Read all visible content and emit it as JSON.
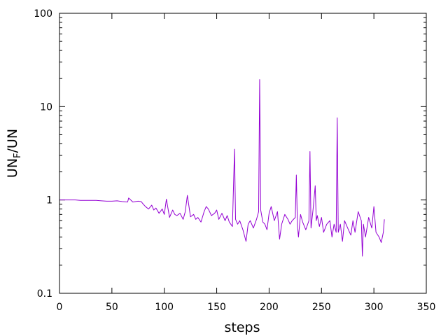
{
  "chart_data": {
    "type": "line",
    "title": "",
    "xlabel": "steps",
    "ylabel": "UN",
    "ylabel_sub": "F",
    "ylabel_suffix": "/UN",
    "xlim": [
      0,
      350
    ],
    "ylim": [
      0.1,
      100
    ],
    "yscale": "log",
    "grid": false,
    "legend": "none",
    "x_ticks": [
      0,
      50,
      100,
      150,
      200,
      250,
      300,
      350
    ],
    "x_tick_labels": [
      "0",
      "50",
      "100",
      "150",
      "200",
      "250",
      "300",
      "350"
    ],
    "y_ticks": [
      0.1,
      1,
      10,
      100
    ],
    "y_tick_labels": [
      "0.1",
      "1",
      "10",
      "100"
    ],
    "series": [
      {
        "color": "#9400d3",
        "x": [
          0,
          5,
          10,
          15,
          20,
          25,
          30,
          35,
          40,
          45,
          50,
          55,
          60,
          65,
          66,
          70,
          75,
          78,
          80,
          82,
          85,
          88,
          90,
          92,
          95,
          98,
          100,
          102,
          105,
          108,
          110,
          112,
          115,
          118,
          120,
          122,
          125,
          128,
          130,
          132,
          135,
          138,
          140,
          142,
          145,
          148,
          150,
          152,
          155,
          158,
          160,
          162,
          165,
          167,
          168,
          170,
          172,
          175,
          178,
          180,
          182,
          185,
          188,
          190,
          191,
          192,
          194,
          196,
          198,
          200,
          202,
          205,
          208,
          210,
          212,
          215,
          218,
          220,
          222,
          225,
          226,
          227,
          228,
          230,
          232,
          235,
          238,
          239,
          240,
          242,
          244,
          245,
          246,
          248,
          250,
          252,
          255,
          258,
          260,
          262,
          264,
          265,
          266,
          268,
          270,
          272,
          275,
          278,
          280,
          282,
          285,
          288,
          289,
          290,
          292,
          295,
          298,
          300,
          302,
          305,
          307,
          309,
          310
        ],
        "y": [
          1.0,
          1.0,
          1.0,
          1.0,
          0.99,
          0.99,
          0.99,
          0.99,
          0.98,
          0.97,
          0.97,
          0.98,
          0.96,
          0.95,
          1.05,
          0.95,
          0.97,
          0.96,
          0.9,
          0.85,
          0.8,
          0.88,
          0.78,
          0.82,
          0.72,
          0.8,
          0.7,
          1.02,
          0.65,
          0.78,
          0.7,
          0.68,
          0.72,
          0.62,
          0.75,
          1.12,
          0.66,
          0.7,
          0.62,
          0.65,
          0.58,
          0.75,
          0.85,
          0.8,
          0.68,
          0.72,
          0.78,
          0.62,
          0.72,
          0.6,
          0.68,
          0.58,
          0.52,
          3.5,
          0.62,
          0.55,
          0.6,
          0.48,
          0.36,
          0.55,
          0.6,
          0.5,
          0.62,
          0.75,
          19.5,
          0.78,
          0.58,
          0.55,
          0.48,
          0.72,
          0.85,
          0.6,
          0.75,
          0.38,
          0.55,
          0.7,
          0.62,
          0.55,
          0.6,
          0.65,
          1.85,
          0.55,
          0.4,
          0.7,
          0.58,
          0.48,
          0.6,
          3.3,
          0.5,
          0.8,
          1.42,
          0.6,
          0.68,
          0.52,
          0.65,
          0.45,
          0.55,
          0.6,
          0.4,
          0.55,
          0.45,
          7.6,
          0.45,
          0.55,
          0.36,
          0.6,
          0.5,
          0.42,
          0.6,
          0.45,
          0.75,
          0.6,
          0.25,
          0.55,
          0.4,
          0.65,
          0.5,
          0.85,
          0.45,
          0.4,
          0.35,
          0.45,
          0.62
        ]
      }
    ]
  }
}
